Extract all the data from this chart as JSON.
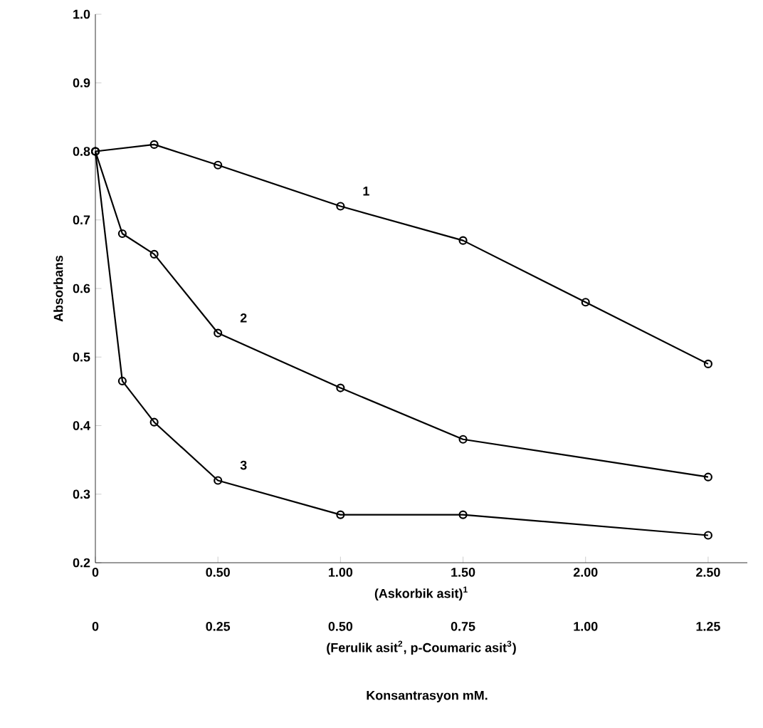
{
  "chart_data": {
    "type": "line",
    "ylabel": "Absorbans",
    "xlabel": "(Askorbik asit)$^{1}$",
    "x2label": "(Ferulik asit$^{2}$, p-Coumaric asit$^{3}$)",
    "annotations": [
      "Konsantrasyon mM."
    ],
    "xlim": [
      0,
      2.66
    ],
    "xticks": [
      {
        "value": 0,
        "label": "0"
      },
      {
        "value": 0.5,
        "label": "0.50"
      },
      {
        "value": 1,
        "label": "1.00"
      },
      {
        "value": 1.5,
        "label": "1.50"
      },
      {
        "value": 2,
        "label": "2.00"
      },
      {
        "value": 2.5,
        "label": "2.50"
      }
    ],
    "x2lim": [
      0,
      1.33
    ],
    "x2ticks": [
      {
        "value": 0,
        "label": "0"
      },
      {
        "value": 0.25,
        "label": "0.25"
      },
      {
        "value": 0.5,
        "label": "0.50"
      },
      {
        "value": 0.75,
        "label": "0.75"
      },
      {
        "value": 1,
        "label": "1.00"
      },
      {
        "value": 1.25,
        "label": "1.25"
      }
    ],
    "ylim": [
      0.2,
      1.0
    ],
    "yticks": [
      {
        "value": 0.2,
        "label": "0.2"
      },
      {
        "value": 0.3,
        "label": "0.3"
      },
      {
        "value": 0.4,
        "label": "0.4"
      },
      {
        "value": 0.5,
        "label": "0.5"
      },
      {
        "value": 0.6,
        "label": "0.6"
      },
      {
        "value": 0.7,
        "label": "0.7"
      },
      {
        "value": 0.8,
        "label": "0.8"
      },
      {
        "value": 0.9,
        "label": "0.9"
      },
      {
        "value": 1.0,
        "label": "1.0"
      }
    ],
    "grid": false,
    "marker": "circle",
    "line_style": "solid",
    "series": [
      {
        "name": "1",
        "color": "#000000",
        "x": [
          0,
          0.24,
          0.5,
          1.0,
          1.5,
          2.0,
          2.5
        ],
        "values": [
          0.8,
          0.81,
          0.78,
          0.72,
          0.67,
          0.58,
          0.49
        ]
      },
      {
        "name": "2",
        "color": "#000000",
        "x": [
          0,
          0.11,
          0.24,
          0.5,
          1.0,
          1.5,
          2.5
        ],
        "values": [
          0.8,
          0.68,
          0.65,
          0.535,
          0.455,
          0.38,
          0.325
        ]
      },
      {
        "name": "3",
        "color": "#000000",
        "x": [
          0,
          0.11,
          0.24,
          0.5,
          1.0,
          1.5,
          2.5
        ],
        "values": [
          0.8,
          0.465,
          0.405,
          0.32,
          0.27,
          0.27,
          0.24
        ]
      }
    ]
  }
}
